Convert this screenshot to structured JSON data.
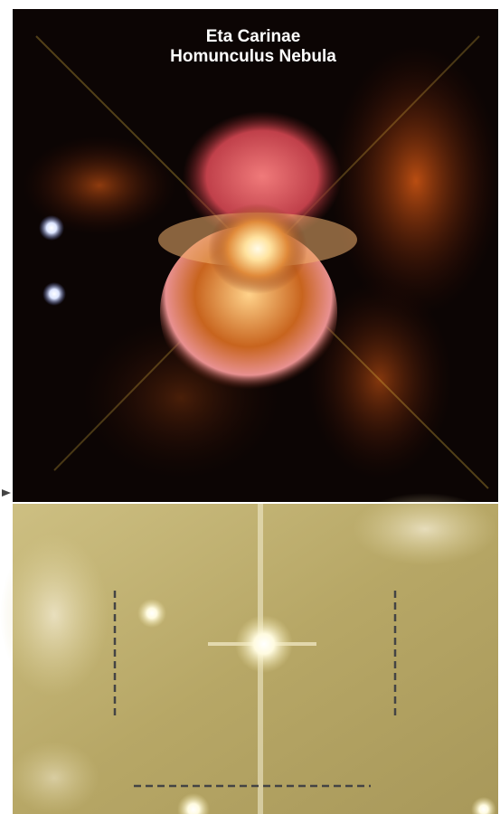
{
  "image": {
    "title": [
      "Eta Carinae",
      "Homunculus Nebula"
    ]
  }
}
